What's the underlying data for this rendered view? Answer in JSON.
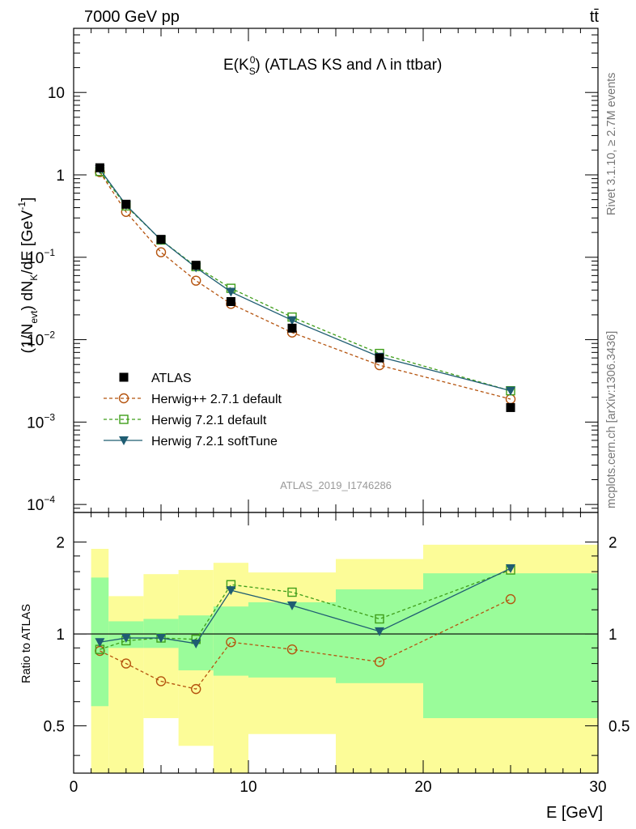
{
  "header": {
    "left": "7000 GeV pp",
    "right": "tt̄"
  },
  "plot_title": {
    "prefix": "E(K",
    "sup": "0",
    "sub": "S",
    "suffix": ") (ATLAS KS and Λ in ttbar)"
  },
  "side_labels": {
    "rivet": "Rivet 3.1.10, ≥ 2.7M events",
    "mcplots": "mcplots.cern.ch [arXiv:1306.3436]"
  },
  "watermark": "ATLAS_2019_I1746286",
  "axes": {
    "ylabel_main": "(1/N_evt) dN_K/dE [GeV^-1]",
    "ylabel_ratio": "Ratio to ATLAS",
    "xlabel": "E [GeV]"
  },
  "legend": [
    {
      "label": "ATLAS",
      "series": "ATLAS"
    },
    {
      "label": "Herwig++ 2.7.1 default",
      "series": "H271"
    },
    {
      "label": "Herwig 7.2.1 default",
      "series": "H721"
    },
    {
      "label": "Herwig 7.2.1 softTune",
      "series": "H721soft"
    }
  ],
  "colors": {
    "data": "#000000",
    "herwigpp": "#b5540f",
    "herwig7": "#3f9e1a",
    "softtune": "#1f5d72",
    "band_inner": "#9afc9a",
    "band_outer": "#fcfc98"
  },
  "chart_data": [
    {
      "type": "line",
      "scale": "log",
      "xlim": [
        0,
        30
      ],
      "ylim": [
        8e-05,
        60
      ],
      "xticks": [
        0,
        10,
        20,
        30
      ],
      "yticks": [
        {
          "v": 0.0001,
          "b": "10",
          "e": "−4"
        },
        {
          "v": 0.001,
          "b": "10",
          "e": "−3"
        },
        {
          "v": 0.01,
          "b": "10",
          "e": "−2"
        },
        {
          "v": 0.1,
          "b": "10",
          "e": "−1"
        },
        {
          "v": 1,
          "b": "1",
          "e": ""
        },
        {
          "v": 10,
          "b": "10",
          "e": ""
        }
      ],
      "x": [
        1.5,
        3,
        5,
        7,
        9,
        12.5,
        17.5,
        25
      ],
      "series": [
        {
          "name": "ATLAS",
          "values": [
            1.22,
            0.44,
            0.165,
            0.08,
            0.029,
            0.0138,
            0.006,
            0.0015
          ]
        },
        {
          "name": "Herwig++ 2.7.1 default",
          "values": [
            1.08,
            0.355,
            0.115,
            0.052,
            0.0272,
            0.0122,
            0.0049,
            0.0019
          ]
        },
        {
          "name": "Herwig 7.2.1 default",
          "values": [
            1.1,
            0.42,
            0.162,
            0.077,
            0.042,
            0.0188,
            0.0068,
            0.0024
          ]
        },
        {
          "name": "Herwig 7.2.1 softTune",
          "values": [
            1.17,
            0.43,
            0.162,
            0.075,
            0.038,
            0.0172,
            0.0062,
            0.0024
          ]
        }
      ]
    },
    {
      "type": "line",
      "scale": "log",
      "xlim": [
        0,
        30
      ],
      "ylim": [
        0.35,
        2.5
      ],
      "yticks": [
        0.5,
        1,
        2
      ],
      "x": [
        1.5,
        3,
        5,
        7,
        9,
        12.5,
        17.5,
        25
      ],
      "band_edges": [
        1,
        2,
        4,
        6,
        8,
        10,
        15,
        20,
        30
      ],
      "band_inner": [
        [
          0.58,
          1.53
        ],
        [
          0.9,
          1.1
        ],
        [
          0.9,
          1.12
        ],
        [
          0.76,
          1.15
        ],
        [
          0.73,
          1.23
        ],
        [
          0.72,
          1.27
        ],
        [
          0.69,
          1.4
        ],
        [
          0.53,
          1.58
        ]
      ],
      "band_outer": [
        [
          0.35,
          1.9
        ],
        [
          0.35,
          1.33
        ],
        [
          0.53,
          1.57
        ],
        [
          0.43,
          1.62
        ],
        [
          0.35,
          1.71
        ],
        [
          0.47,
          1.59
        ],
        [
          0.35,
          1.76
        ],
        [
          0.35,
          1.96
        ]
      ],
      "series": [
        {
          "name": "Herwig++ 2.7.1 default",
          "values": [
            0.88,
            0.8,
            0.7,
            0.66,
            0.94,
            0.89,
            0.81,
            1.3
          ]
        },
        {
          "name": "Herwig 7.2.1 default",
          "values": [
            0.89,
            0.95,
            0.97,
            0.96,
            1.45,
            1.37,
            1.12,
            1.62
          ]
        },
        {
          "name": "Herwig 7.2.1 softTune",
          "values": [
            0.94,
            0.97,
            0.97,
            0.93,
            1.39,
            1.24,
            1.02,
            1.64
          ]
        }
      ]
    }
  ]
}
